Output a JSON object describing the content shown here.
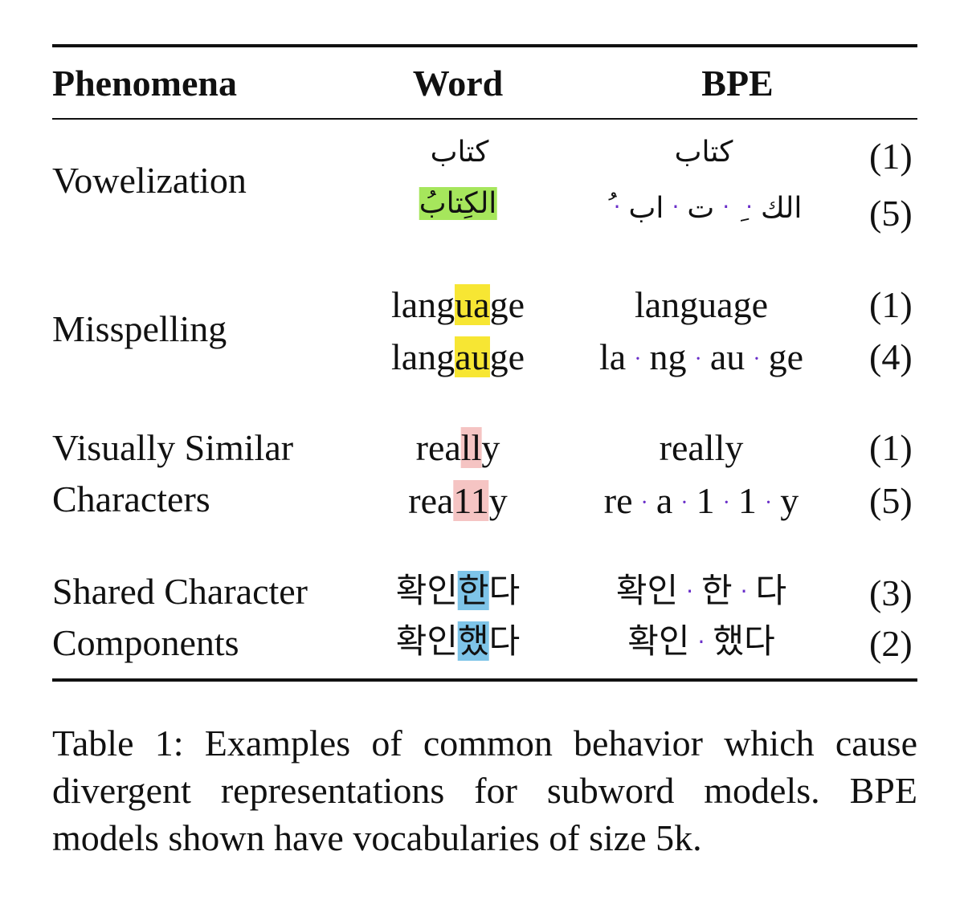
{
  "table": {
    "headers": {
      "phenomena": "Phenomena",
      "word": "Word",
      "bpe": "BPE"
    },
    "groups": [
      {
        "phenomenon": [
          "Vowelization"
        ],
        "rows": [
          {
            "word": "كتاب",
            "bpe": [
              "كتاب"
            ],
            "count": "(1)"
          },
          {
            "word": "الكِتابُ",
            "bpe": [
              "الك",
              "ِ",
              "ت",
              "اب",
              "ُ"
            ],
            "count": "(5)"
          }
        ]
      },
      {
        "phenomenon": [
          "Misspelling"
        ],
        "rows": [
          {
            "word_parts": [
              "lang",
              "ua",
              "ge"
            ],
            "bpe": [
              "language"
            ],
            "count": "(1)"
          },
          {
            "word_parts": [
              "lang",
              "au",
              "ge"
            ],
            "bpe": [
              "la",
              "ng",
              "au",
              "ge"
            ],
            "count": "(4)"
          }
        ]
      },
      {
        "phenomenon": [
          "Visually Similar",
          "Characters"
        ],
        "rows": [
          {
            "word_parts": [
              "rea",
              "ll",
              "y"
            ],
            "bpe": [
              "really"
            ],
            "count": "(1)"
          },
          {
            "word_parts": [
              "rea",
              "11",
              "y"
            ],
            "bpe": [
              "re",
              "a",
              "1",
              "1",
              "y"
            ],
            "count": "(5)"
          }
        ]
      },
      {
        "phenomenon": [
          "Shared Character",
          "Components"
        ],
        "rows": [
          {
            "word_parts": [
              "확인",
              "한",
              "다"
            ],
            "bpe": [
              "확인",
              "한",
              "다"
            ],
            "count": "(3)"
          },
          {
            "word_parts": [
              "확인",
              "했",
              "다"
            ],
            "bpe": [
              "확인",
              "했다"
            ],
            "count": "(2)"
          }
        ]
      }
    ],
    "separator": "·"
  },
  "caption": "Table 1: Examples of common behavior which cause divergent representations for subword models. BPE models shown have vocabularies of size 5k.",
  "colors": {
    "yellow": "#f7e633",
    "pink": "#f5c4c3",
    "blue": "#7ec4e8",
    "green": "#a6e65c",
    "dot": "#6a2fc9"
  }
}
